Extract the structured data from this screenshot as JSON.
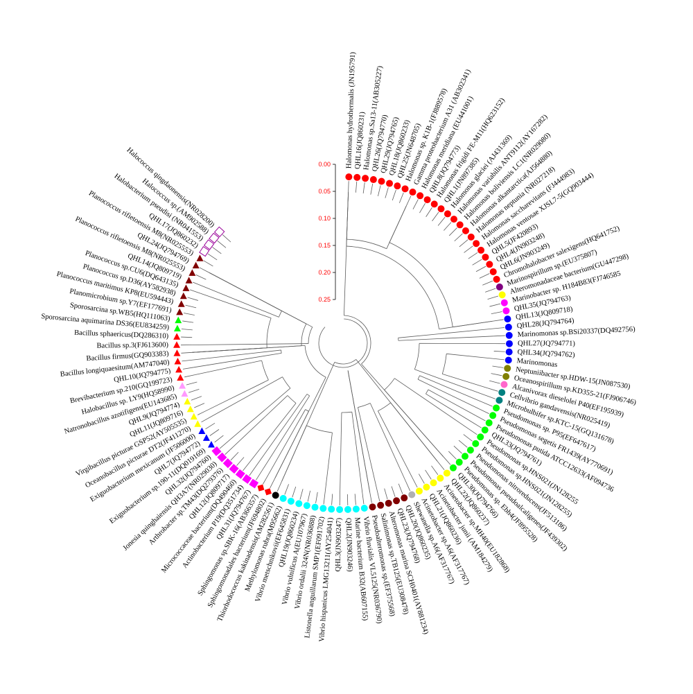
{
  "scale": {
    "ticks": [
      "0.00",
      "0.05",
      "0.10",
      "0.15",
      "0.20",
      "0.25"
    ]
  },
  "colors": {
    "red": "#ff0000",
    "purple": "#800080",
    "yellow": "#ffff00",
    "pink": "#ff66cc",
    "magenta": "#ff00ff",
    "blue": "#0000ff",
    "olive": "#808000",
    "teal": "#008080",
    "green": "#00ff00",
    "gray": "#b0b0b0",
    "maroon": "#800000",
    "cyan": "#00ffff",
    "black": "#000000",
    "lavender": "#ff99ff",
    "hollow": "#990099"
  },
  "clades": [
    [
      0,
      8,
      150
    ],
    [
      0,
      28,
      140
    ],
    [
      8,
      28,
      160
    ],
    [
      29,
      30,
      80
    ],
    [
      31,
      38,
      110
    ],
    [
      33,
      37,
      150
    ],
    [
      39,
      40,
      120
    ],
    [
      41,
      42,
      140
    ],
    [
      43,
      48,
      90
    ],
    [
      49,
      53,
      110
    ],
    [
      54,
      58,
      95
    ],
    [
      59,
      59,
      40
    ],
    [
      60,
      63,
      100
    ],
    [
      65,
      71,
      130
    ],
    [
      72,
      73,
      110
    ],
    [
      74,
      75,
      90
    ],
    [
      76,
      79,
      110
    ],
    [
      80,
      84,
      100
    ],
    [
      85,
      90,
      120
    ],
    [
      91,
      92,
      90
    ],
    [
      93,
      101,
      110
    ],
    [
      93,
      104,
      60
    ],
    [
      102,
      104,
      100
    ],
    [
      0,
      48,
      40
    ],
    [
      49,
      71,
      30
    ],
    [
      72,
      93,
      55
    ],
    [
      94,
      104,
      50
    ]
  ],
  "taxa": [
    {
      "name": "Halomonas hydrothermalis (JN195791)",
      "shape": "circle",
      "color": "red"
    },
    {
      "name": "QHL16(JQ860231)",
      "shape": "circle",
      "color": "red"
    },
    {
      "name": "Halomonas sp.Sa13-11(AB305227)",
      "shape": "circle",
      "color": "red"
    },
    {
      "name": "QHL26(JQ794770)",
      "shape": "circle",
      "color": "red"
    },
    {
      "name": "QHL29(JQ794765)",
      "shape": "circle",
      "color": "red"
    },
    {
      "name": "QHL18(JQ860233)",
      "shape": "circle",
      "color": "red"
    },
    {
      "name": "QHL25(JN648705)",
      "shape": "circle",
      "color": "red"
    },
    {
      "name": "Halomonas sp. K1B-1(FJ889578)",
      "shape": "circle",
      "color": "red"
    },
    {
      "name": "Gamma proteobacterium A31 (AB302341)",
      "shape": "circle",
      "color": "red"
    },
    {
      "name": "Halomonas meridiana (EU441001)",
      "shape": "circle",
      "color": "red"
    },
    {
      "name": "QHL8(JQ794773)",
      "shape": "circle",
      "color": "red"
    },
    {
      "name": "Halomonas frigidi FE-M11(HQ623152)",
      "shape": "circle",
      "color": "red"
    },
    {
      "name": "QHL1(JN897385)",
      "shape": "circle",
      "color": "red"
    },
    {
      "name": "Halomonas glaciei (AJ431369)",
      "shape": "circle",
      "color": "red"
    },
    {
      "name": "Halomonas variabilis ANT9112(AY167282)",
      "shape": "circle",
      "color": "red"
    },
    {
      "name": "Halomonas boliviensis LC1(NR029080)",
      "shape": "circle",
      "color": "red"
    },
    {
      "name": "Halomonas alkantarctica(AJ564880)",
      "shape": "circle",
      "color": "red"
    },
    {
      "name": "Halomonas neptunia (NR027218)",
      "shape": "circle",
      "color": "red"
    },
    {
      "name": "Halomonas saccharevitans (FJ444983)",
      "shape": "circle",
      "color": "red"
    },
    {
      "name": "Halomonas ventosae XJSL7-5(GQ903444)",
      "shape": "circle",
      "color": "red"
    },
    {
      "name": "QHL5(JF420893)",
      "shape": "circle",
      "color": "red"
    },
    {
      "name": "QHL4(JN903248)",
      "shape": "circle",
      "color": "red"
    },
    {
      "name": "QHL6(JN903249)",
      "shape": "circle",
      "color": "red"
    },
    {
      "name": "Chromohalobacter salexigens(HQ641752)",
      "shape": "circle",
      "color": "red"
    },
    {
      "name": "Marinospirillum sp.(EU375807)",
      "shape": "circle",
      "color": "purple"
    },
    {
      "name": "Alteromonadaceae bacterium(GU447298)",
      "shape": "circle",
      "color": "yellow"
    },
    {
      "name": "Marinobacter sp. H184B83(FJ746585",
      "shape": "circle",
      "color": "magenta"
    },
    {
      "name": "QHL35(JQ794763)",
      "shape": "circle",
      "color": "magenta"
    },
    {
      "name": "QHL13(JQ809718)",
      "shape": "circle",
      "color": "blue"
    },
    {
      "name": "QHL28(JQ794764)",
      "shape": "circle",
      "color": "blue"
    },
    {
      "name": "Marinomonas sp.BSi20337(DQ492756)",
      "shape": "circle",
      "color": "blue"
    },
    {
      "name": "QHL27(JQ794771)",
      "shape": "circle",
      "color": "blue"
    },
    {
      "name": "QHL34(JQ794762)",
      "shape": "circle",
      "color": "blue"
    },
    {
      "name": "Marinomonas",
      "shape": "circle",
      "color": "blue"
    },
    {
      "name": "Neptuniibacter sp.HDW-15(JN087530)",
      "shape": "circle",
      "color": "olive"
    },
    {
      "name": "Oceanospirillum sp.KD355-21(FJ906746)",
      "shape": "circle",
      "color": "olive"
    },
    {
      "name": "Alcanivorax dieselolei P40(EF195939)",
      "shape": "circle",
      "color": "pink"
    },
    {
      "name": "Cellvibrio gandavensis(NR025419)",
      "shape": "circle",
      "color": "teal"
    },
    {
      "name": "Microbulbifer sp.KTC-15(GQ131678)",
      "shape": "circle",
      "color": "teal"
    },
    {
      "name": "Pseudomonas sp. P95(EF647617)",
      "shape": "circle",
      "color": "green"
    },
    {
      "name": "Pseudomonas segetis FR1439(AY770691)",
      "shape": "circle",
      "color": "green"
    },
    {
      "name": "Pseudomonas putida ATCC12633(AF094736",
      "shape": "circle",
      "color": "green"
    },
    {
      "name": "QHL33(JQ794761)",
      "shape": "circle",
      "color": "green"
    },
    {
      "name": "Pseudomonas sp.HNS021(JN128255",
      "shape": "circle",
      "color": "green"
    },
    {
      "name": "Pseudomonas sp.HNS021(JN128255)",
      "shape": "circle",
      "color": "green"
    },
    {
      "name": "Pseudomonas nitroreducens(JF513186)",
      "shape": "circle",
      "color": "green"
    },
    {
      "name": "Pseudomonas pseudoalcaligenes(JF439302)",
      "shape": "circle",
      "color": "green"
    },
    {
      "name": "Pseudomonas sp. Ebh4(JF895528)",
      "shape": "circle",
      "color": "green"
    },
    {
      "name": "QHL30(JQ794766)",
      "shape": "circle",
      "color": "green"
    },
    {
      "name": "QHL22(JQ860237)",
      "shape": "circle",
      "color": "yellow"
    },
    {
      "name": "Acinetobacter sp.MH40(EU182868)",
      "shape": "circle",
      "color": "yellow"
    },
    {
      "name": "Acinetobacter junii (AM184279)",
      "shape": "circle",
      "color": "yellow"
    },
    {
      "name": "QHL21(JQ860236)",
      "shape": "circle",
      "color": "yellow"
    },
    {
      "name": "Acinetobacter sp.A6(AF317767)",
      "shape": "circle",
      "color": "yellow"
    },
    {
      "name": "Shewanella sp.A6(AF317767)",
      "shape": "circle",
      "color": "gray"
    },
    {
      "name": "QHL20(JQ860235)",
      "shape": "circle",
      "color": "maroon"
    },
    {
      "name": "QHL23(JQ794768)",
      "shape": "circle",
      "color": "maroon"
    },
    {
      "name": "Alteromonas marina SCH0401(AY881234)",
      "shape": "circle",
      "color": "maroon"
    },
    {
      "name": "Salinimonas sp.TB125(EU308478)",
      "shape": "circle",
      "color": "maroon"
    },
    {
      "name": "Pseudoalteromonas sp.(EF375568)",
      "shape": "circle",
      "color": "maroon"
    },
    {
      "name": "Vibrio fluvialis VL5125(NR036790)",
      "shape": "circle",
      "color": "cyan"
    },
    {
      "name": "Marine bacterium B32(AB607155)",
      "shape": "circle",
      "color": "cyan"
    },
    {
      "name": "QHL2(JN903246)",
      "shape": "circle",
      "color": "cyan"
    },
    {
      "name": "QHL3(JN903247)",
      "shape": "circle",
      "color": "cyan"
    },
    {
      "name": "Vibrio hispanicus LMG13211(AY254041)",
      "shape": "circle",
      "color": "cyan"
    },
    {
      "name": "Listonella anguillarum SMP1(EF091702)",
      "shape": "circle",
      "color": "cyan"
    },
    {
      "name": "Vibrio ordalii 324N(NR036888)",
      "shape": "circle",
      "color": "cyan"
    },
    {
      "name": "Vibrio vulnificus A(EU107967)",
      "shape": "circle",
      "color": "cyan"
    },
    {
      "name": "QHL19(JQ860234)",
      "shape": "circle",
      "color": "cyan"
    },
    {
      "name": "Vibrio metschnikovii(EF645831)",
      "shape": "circle",
      "color": "cyan"
    },
    {
      "name": "Methylomonas rubra(M95662)",
      "shape": "circle",
      "color": "cyan"
    },
    {
      "name": "Thiorhodococcus kakinadensis(AM282561)",
      "shape": "circle",
      "color": "black"
    },
    {
      "name": "Sphingomonadales bacterium(JF694802)",
      "shape": "diamond",
      "color": "red"
    },
    {
      "name": "Sphingomonas sp.SBK-16(AB366357)",
      "shape": "diamond",
      "color": "red"
    },
    {
      "name": "QHL31(JQ794767)",
      "shape": "square",
      "color": "magenta"
    },
    {
      "name": "Actinobacterium P19(DQ351734)",
      "shape": "square",
      "color": "magenta"
    },
    {
      "name": "Micrococcaceae bacterium(DQ490460)",
      "shape": "square",
      "color": "magenta"
    },
    {
      "name": "QHL12(JQ809717)",
      "shape": "square",
      "color": "magenta"
    },
    {
      "name": "Arthrobacter sp.TM43(DQ279376)",
      "shape": "square",
      "color": "magenta"
    },
    {
      "name": "Jonesia quinghaiensis QH3A7(NR029030)",
      "shape": "square",
      "color": "magenta"
    },
    {
      "name": "QHL32(JQ794760)",
      "shape": "square",
      "color": "magenta"
    },
    {
      "name": "Exiguobacterium sp.190-11(DQ019169)",
      "shape": "triangle",
      "color": "blue"
    },
    {
      "name": "QHL7(JQ794772)",
      "shape": "triangle",
      "color": "blue"
    },
    {
      "name": "Exiguobacterium mexicanum (JF506000)",
      "shape": "triangle",
      "color": "blue"
    },
    {
      "name": "Oceanobacillus picturae DT2(JF411270)",
      "shape": "triangle",
      "color": "yellow"
    },
    {
      "name": "Virgibacillus picturae GSP52(AY505535)",
      "shape": "triangle",
      "color": "yellow"
    },
    {
      "name": "QHL11(JQ809716)",
      "shape": "triangle",
      "color": "yellow"
    },
    {
      "name": "QHL9(JQ794774)",
      "shape": "triangle",
      "color": "yellow"
    },
    {
      "name": "Natronobacillus azotifigens(EU143685)",
      "shape": "triangle",
      "color": "lavender"
    },
    {
      "name": "Halobacillus sp. LY9(HQ58990)",
      "shape": "triangle",
      "color": "lavender"
    },
    {
      "name": "Brevibacterium sp.210(GQ199723)",
      "shape": "triangle",
      "color": "red"
    },
    {
      "name": "QHL10(JQ794775)",
      "shape": "triangle",
      "color": "red"
    },
    {
      "name": "Bacillus longiquaesitum(AM747040)",
      "shape": "triangle",
      "color": "red"
    },
    {
      "name": "Bacillus firmus(GQ903383)",
      "shape": "triangle",
      "color": "red"
    },
    {
      "name": "Bacillus sp.3(FJ613600)",
      "shape": "triangle",
      "color": "red"
    },
    {
      "name": "Bacillus sphaericus(DQ286310)",
      "shape": "triangle",
      "color": "red"
    },
    {
      "name": "Sporosarcina aquimarina DS36(EU834259)",
      "shape": "triangle",
      "color": "green"
    },
    {
      "name": "Sporosarcina sp.WB5(HQ111063)",
      "shape": "triangle",
      "color": "green"
    },
    {
      "name": "Planomicrobium sp.Y7(EF177691)",
      "shape": "triangle",
      "color": "maroon"
    },
    {
      "name": "Planococcus maritimus KP8(EU594443)",
      "shape": "triangle",
      "color": "maroon"
    },
    {
      "name": "Planococcus sp.D36(AY582938)",
      "shape": "triangle",
      "color": "maroon"
    },
    {
      "name": "Planococcus sp.CU6(DQ643135)",
      "shape": "triangle",
      "color": "maroon"
    },
    {
      "name": "QHL14(JQ809719)",
      "shape": "triangle",
      "color": "maroon"
    },
    {
      "name": "Planococcus rifietoensis M8(NR025553)",
      "shape": "triangle",
      "color": "maroon"
    },
    {
      "name": "QHL24(JQ794769)",
      "shape": "triangle",
      "color": "maroon"
    },
    {
      "name": "Planococcus rifietoensis M8(NR025553)",
      "shape": "triangle",
      "color": "maroon"
    },
    {
      "name": "QHL17(JQ860232)",
      "shape": "hollow-square",
      "color": "hollow"
    },
    {
      "name": "Halobacterium pseudisi (NR041553)",
      "shape": "hollow-square",
      "color": "hollow"
    },
    {
      "name": "Halococcus sp.(AM902588)",
      "shape": "hollow-square",
      "color": "hollow"
    },
    {
      "name": "Halococcus qingdaonensis(NR028200)",
      "shape": "hollow-square",
      "color": "hollow"
    }
  ]
}
